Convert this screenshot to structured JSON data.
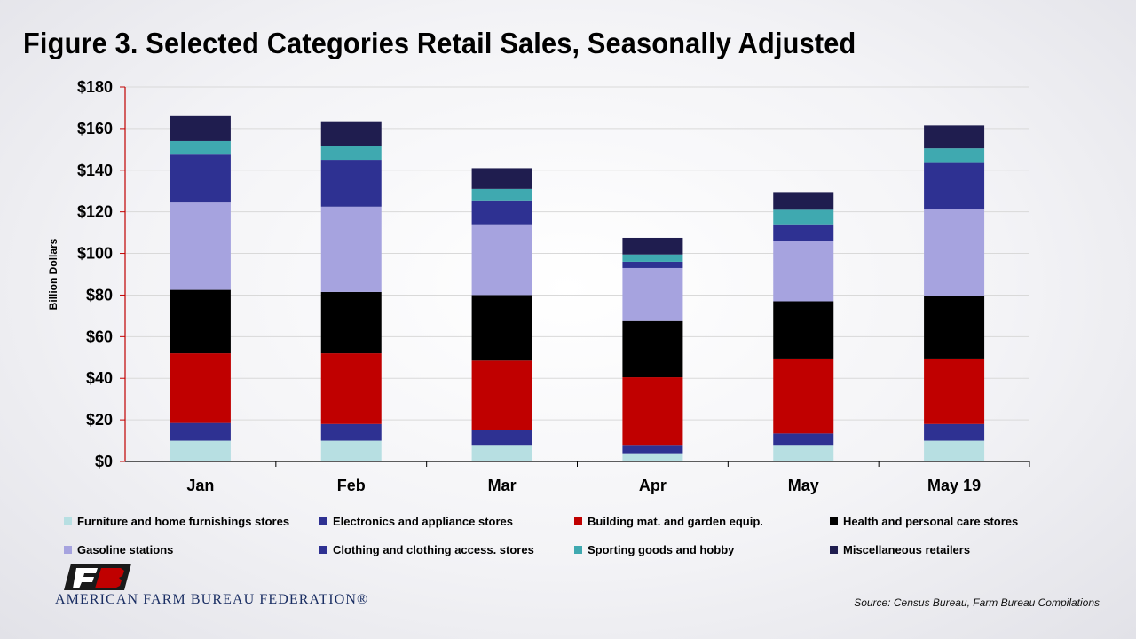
{
  "title": "Figure 3. Selected Categories Retail Sales, Seasonally Adjusted",
  "chart_data": {
    "type": "bar",
    "stacked": true,
    "categories": [
      "Jan",
      "Feb",
      "Mar",
      "Apr",
      "May",
      "May 19"
    ],
    "ylabel": "Billion Dollars",
    "ylim": [
      0,
      180
    ],
    "yticks": [
      "$0",
      "$20",
      "$40",
      "$60",
      "$80",
      "$100",
      "$120",
      "$140",
      "$160",
      "$180"
    ],
    "grid": true,
    "legend_position": "bottom",
    "series": [
      {
        "name": "Furniture and home furnishings stores",
        "color": "#b7dfe2",
        "values": [
          10,
          10,
          8,
          4,
          8,
          10
        ]
      },
      {
        "name": "Electronics and appliance stores",
        "color": "#2e3192",
        "values": [
          8.5,
          8,
          7,
          4,
          5.5,
          8
        ]
      },
      {
        "name": "Building mat. and garden equip.",
        "color": "#c00000",
        "values": [
          33.5,
          34,
          33.5,
          32.5,
          36,
          31.5
        ]
      },
      {
        "name": "Health and personal care stores",
        "color": "#000000",
        "values": [
          30.5,
          29.5,
          31.5,
          27,
          27.5,
          30
        ]
      },
      {
        "name": "Gasoline stations",
        "color": "#a6a3df",
        "values": [
          42,
          41,
          34,
          25.5,
          29,
          42
        ]
      },
      {
        "name": "Clothing and clothing access. stores",
        "color": "#2e3192",
        "values": [
          23,
          22.5,
          11.5,
          3,
          8,
          22
        ]
      },
      {
        "name": "Sporting goods and hobby",
        "color": "#3fa9b0",
        "values": [
          6.5,
          6.5,
          5.5,
          3.5,
          7,
          7
        ]
      },
      {
        "name": "Miscellaneous retailers",
        "color": "#1f1d4f",
        "values": [
          12,
          12,
          10,
          8,
          8.5,
          11
        ]
      }
    ]
  },
  "logo": {
    "text": "AMERICAN FARM BUREAU FEDERATION®",
    "mark": "FB"
  },
  "source": "Source: Census Bureau, Farm Bureau Compilations"
}
